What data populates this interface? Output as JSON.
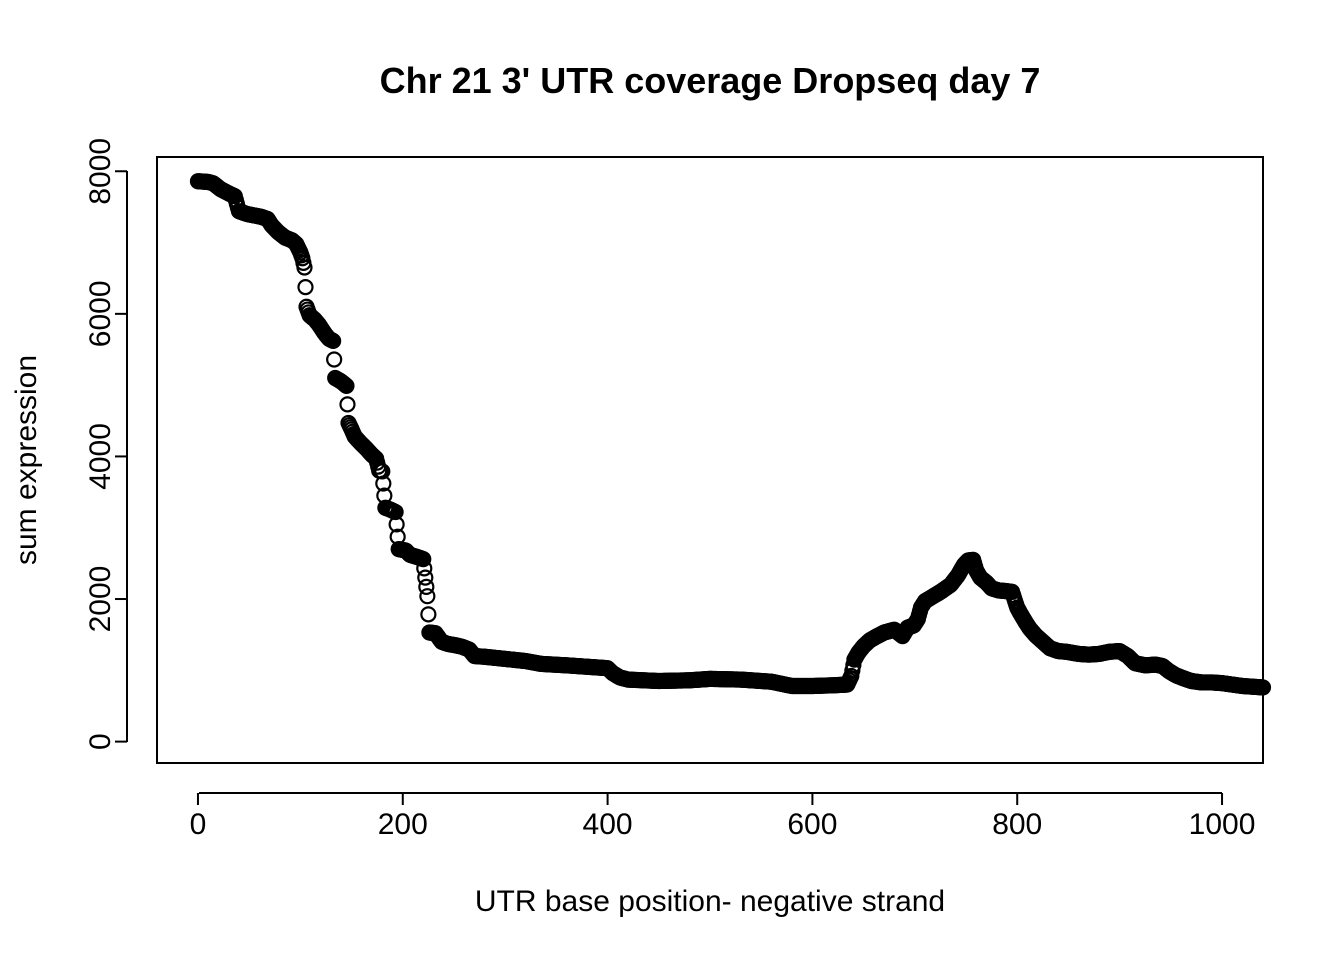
{
  "chart_data": {
    "type": "scatter",
    "title": "Chr 21 3' UTR coverage Dropseq day 7",
    "xlabel": "UTR base position- negative strand",
    "ylabel": "sum expression",
    "xlim": [
      -40,
      1040
    ],
    "ylim": [
      -300,
      8200
    ],
    "xticks": [
      "0",
      "200",
      "400",
      "600",
      "800",
      "1000"
    ],
    "yticks": [
      "0",
      "2000",
      "4000",
      "6000",
      "8000"
    ],
    "marker": "open-circle",
    "grid": false,
    "legend": "none",
    "keypoints": [
      [
        0,
        7860
      ],
      [
        10,
        7850
      ],
      [
        15,
        7830
      ],
      [
        22,
        7750
      ],
      [
        30,
        7690
      ],
      [
        36,
        7650
      ],
      [
        40,
        7440
      ],
      [
        48,
        7400
      ],
      [
        55,
        7380
      ],
      [
        62,
        7360
      ],
      [
        68,
        7330
      ],
      [
        72,
        7240
      ],
      [
        78,
        7150
      ],
      [
        85,
        7070
      ],
      [
        92,
        7030
      ],
      [
        96,
        6980
      ],
      [
        100,
        6860
      ],
      [
        102,
        6780
      ],
      [
        104,
        6650
      ],
      [
        106,
        6100
      ],
      [
        109,
        5980
      ],
      [
        114,
        5920
      ],
      [
        118,
        5850
      ],
      [
        124,
        5720
      ],
      [
        128,
        5650
      ],
      [
        132,
        5620
      ],
      [
        134,
        5100
      ],
      [
        140,
        5050
      ],
      [
        145,
        4990
      ],
      [
        147,
        4470
      ],
      [
        150,
        4380
      ],
      [
        153,
        4280
      ],
      [
        158,
        4200
      ],
      [
        165,
        4100
      ],
      [
        170,
        4020
      ],
      [
        174,
        3970
      ],
      [
        177,
        3800
      ],
      [
        180,
        3790
      ],
      [
        183,
        3280
      ],
      [
        187,
        3260
      ],
      [
        193,
        3220
      ],
      [
        196,
        2700
      ],
      [
        203,
        2680
      ],
      [
        207,
        2620
      ],
      [
        214,
        2590
      ],
      [
        220,
        2560
      ],
      [
        224,
        2040
      ],
      [
        226,
        1530
      ],
      [
        232,
        1520
      ],
      [
        238,
        1400
      ],
      [
        244,
        1370
      ],
      [
        252,
        1350
      ],
      [
        258,
        1330
      ],
      [
        265,
        1290
      ],
      [
        270,
        1200
      ],
      [
        280,
        1190
      ],
      [
        300,
        1160
      ],
      [
        320,
        1130
      ],
      [
        335,
        1090
      ],
      [
        360,
        1070
      ],
      [
        380,
        1050
      ],
      [
        400,
        1030
      ],
      [
        405,
        960
      ],
      [
        412,
        900
      ],
      [
        420,
        870
      ],
      [
        450,
        850
      ],
      [
        480,
        860
      ],
      [
        500,
        880
      ],
      [
        530,
        870
      ],
      [
        560,
        840
      ],
      [
        570,
        810
      ],
      [
        580,
        780
      ],
      [
        600,
        780
      ],
      [
        620,
        790
      ],
      [
        634,
        800
      ],
      [
        638,
        920
      ],
      [
        641,
        1150
      ],
      [
        645,
        1250
      ],
      [
        650,
        1340
      ],
      [
        656,
        1420
      ],
      [
        662,
        1470
      ],
      [
        670,
        1530
      ],
      [
        680,
        1570
      ],
      [
        688,
        1480
      ],
      [
        693,
        1600
      ],
      [
        699,
        1630
      ],
      [
        703,
        1720
      ],
      [
        706,
        1880
      ],
      [
        710,
        1970
      ],
      [
        718,
        2040
      ],
      [
        725,
        2100
      ],
      [
        735,
        2200
      ],
      [
        742,
        2330
      ],
      [
        748,
        2480
      ],
      [
        752,
        2540
      ],
      [
        757,
        2550
      ],
      [
        760,
        2400
      ],
      [
        764,
        2300
      ],
      [
        770,
        2230
      ],
      [
        775,
        2150
      ],
      [
        782,
        2120
      ],
      [
        790,
        2110
      ],
      [
        795,
        2100
      ],
      [
        800,
        1880
      ],
      [
        803,
        1800
      ],
      [
        808,
        1680
      ],
      [
        812,
        1590
      ],
      [
        818,
        1490
      ],
      [
        825,
        1400
      ],
      [
        832,
        1310
      ],
      [
        840,
        1270
      ],
      [
        848,
        1260
      ],
      [
        860,
        1230
      ],
      [
        870,
        1220
      ],
      [
        880,
        1230
      ],
      [
        890,
        1260
      ],
      [
        900,
        1270
      ],
      [
        908,
        1200
      ],
      [
        915,
        1100
      ],
      [
        925,
        1070
      ],
      [
        935,
        1080
      ],
      [
        942,
        1060
      ],
      [
        948,
        990
      ],
      [
        955,
        930
      ],
      [
        962,
        890
      ],
      [
        970,
        850
      ],
      [
        980,
        830
      ],
      [
        990,
        830
      ],
      [
        1000,
        820
      ],
      [
        1010,
        800
      ],
      [
        1020,
        780
      ],
      [
        1030,
        770
      ],
      [
        1040,
        760
      ]
    ]
  }
}
